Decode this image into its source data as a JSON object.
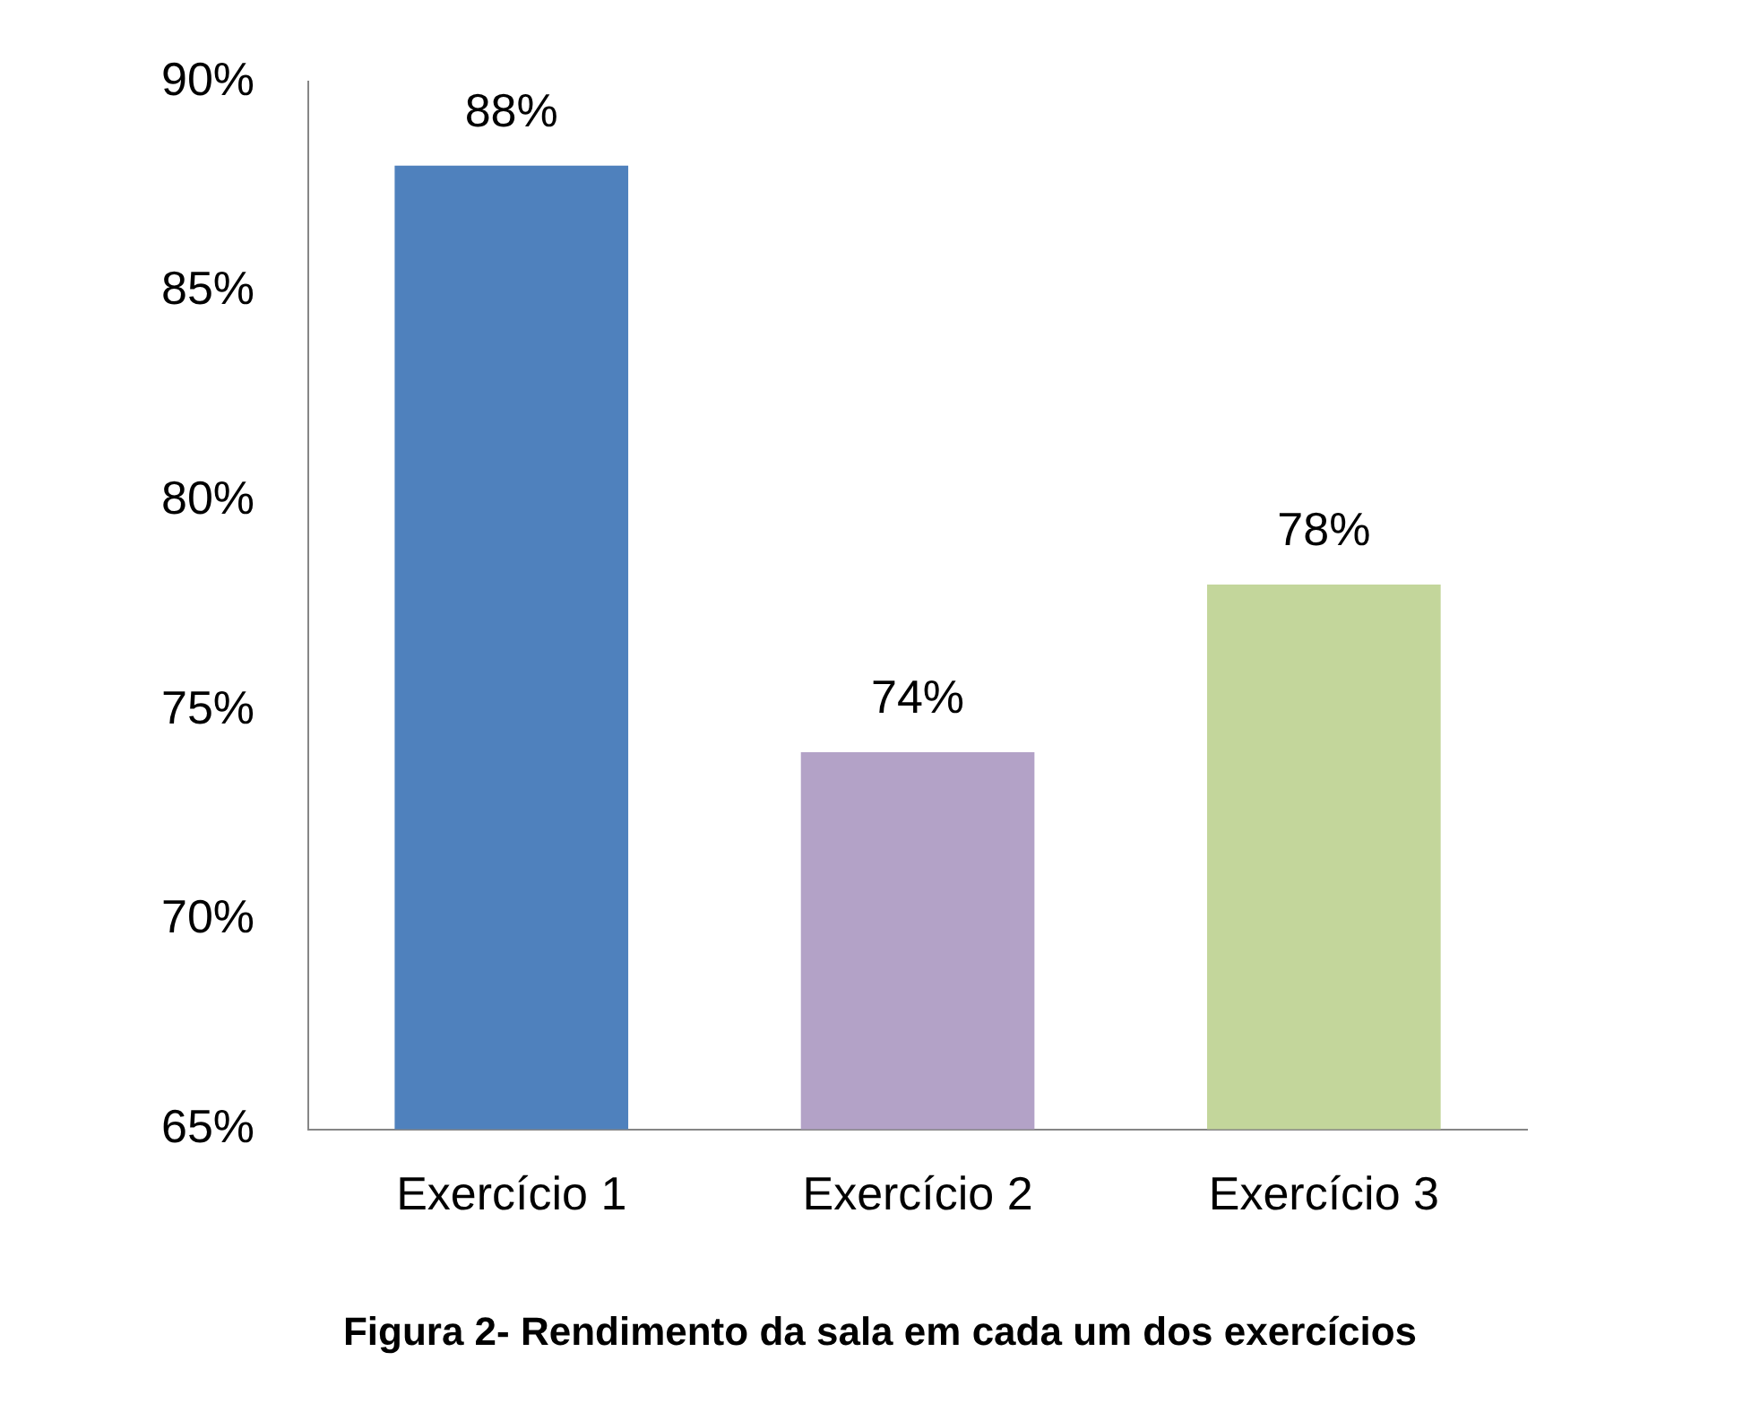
{
  "chart_data": {
    "type": "bar",
    "categories": [
      "Exercício 1",
      "Exercício 2",
      "Exercício 3"
    ],
    "values": [
      88,
      74,
      78
    ],
    "colors": [
      "#4f81bd",
      "#b3a2c7",
      "#c3d69b"
    ],
    "ylim": [
      65,
      90
    ],
    "yticks": [
      {
        "value": 65,
        "label": "65%"
      },
      {
        "value": 70,
        "label": "70%"
      },
      {
        "value": 75,
        "label": "75%"
      },
      {
        "value": 80,
        "label": "80%"
      },
      {
        "value": 85,
        "label": "85%"
      },
      {
        "value": 90,
        "label": "90%"
      }
    ],
    "value_labels": [
      "88%",
      "74%",
      "78%"
    ],
    "grid": false,
    "legend": false,
    "annotations": [
      "Figura 2- Rendimento da sala em cada um dos exercícios"
    ]
  }
}
